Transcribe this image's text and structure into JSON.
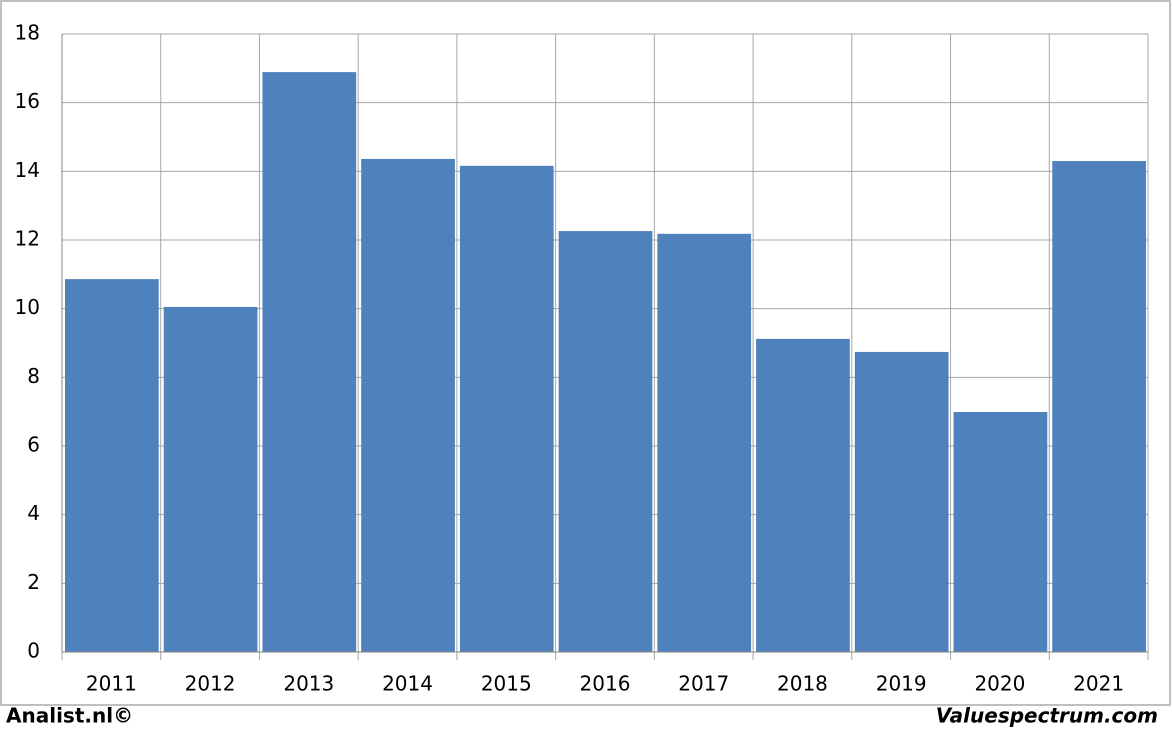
{
  "chart_data": {
    "type": "bar",
    "categories": [
      "2011",
      "2012",
      "2013",
      "2014",
      "2015",
      "2016",
      "2017",
      "2018",
      "2019",
      "2020",
      "2021"
    ],
    "values": [
      10.86,
      10.05,
      16.89,
      14.36,
      14.16,
      12.26,
      12.18,
      9.12,
      8.74,
      6.99,
      14.3
    ],
    "color": "#4f81bd",
    "ylim": [
      0,
      18
    ],
    "yticks": [
      0,
      2,
      4,
      6,
      8,
      10,
      12,
      14,
      16,
      18
    ],
    "grid": true,
    "footer_left": "Analist.nl©",
    "footer_right": "Valuespectrum.com"
  }
}
